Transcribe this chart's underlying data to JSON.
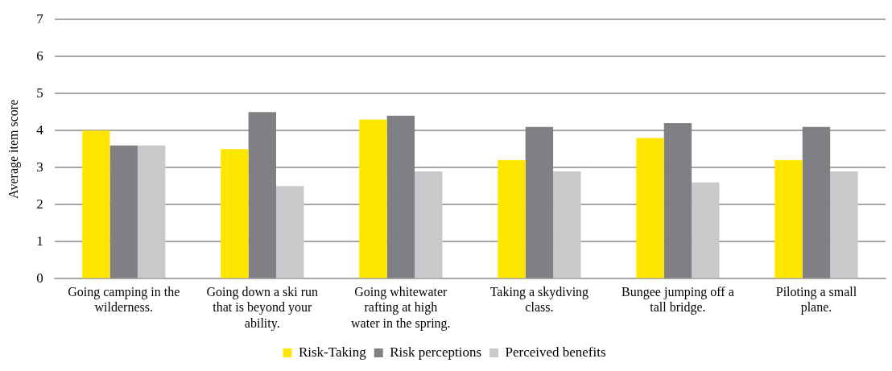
{
  "chart_data": {
    "type": "bar",
    "ylabel": "Average item score",
    "categories": [
      "Going camping in the wilderness.",
      "Going down a ski run that is beyond your ability.",
      "Going whitewater rafting at high water in the spring.",
      "Taking a skydiving class.",
      "Bungee jumping off a tall bridge.",
      "Piloting a small plane."
    ],
    "series": [
      {
        "name": "Risk-Taking",
        "color": "#ffe600",
        "values": [
          4.0,
          3.5,
          4.3,
          3.2,
          3.8,
          3.2
        ]
      },
      {
        "name": "Risk perceptions",
        "color": "#807f83",
        "values": [
          3.6,
          4.5,
          4.4,
          4.1,
          4.2,
          4.1
        ]
      },
      {
        "name": "Perceived benefits",
        "color": "#c9c9cb",
        "values": [
          3.6,
          2.5,
          2.9,
          2.9,
          2.6,
          2.9
        ]
      }
    ],
    "ylim": [
      0,
      7
    ],
    "yticks": [
      0,
      1,
      2,
      3,
      4,
      5,
      6,
      7
    ],
    "grid": "y",
    "legend": "bottom"
  }
}
